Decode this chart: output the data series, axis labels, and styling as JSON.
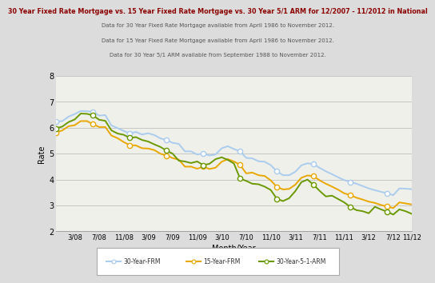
{
  "title": "30 Year Fixed Rate Mortgage vs. 15 Year Fixed Rate Mortgage vs. 30 Year 5/1 ARM for 12/2007 - 11/2012 in National",
  "subtitle1": "Data for 30 Year Fixed Rate Mortgage available from April 1986 to November 2012.",
  "subtitle2": "Data for 15 Year Fixed Rate Mortgage available from April 1986 to November 2012.",
  "subtitle3": "Data for 30 Year 5/1 ARM available from September 1988 to November 2012.",
  "xlabel": "Month/Year",
  "ylabel": "Rate",
  "ylim": [
    2,
    8
  ],
  "yticks": [
    2,
    3,
    4,
    5,
    6,
    7,
    8
  ],
  "bg_color": "#dcdcdc",
  "plot_bg_color": "#f0f0ea",
  "title_color": "#8b0000",
  "subtitle_color": "#555555",
  "color_30yr": "#aaccee",
  "color_15yr": "#e8a800",
  "color_arm": "#6a9900",
  "xtick_labels": [
    "3/08",
    "7/08",
    "11/08",
    "3/09",
    "7/09",
    "11/09",
    "3/10",
    "7/10",
    "11/10",
    "3/11",
    "7/11",
    "11/11",
    "3/12",
    "7/12",
    "11/12"
  ],
  "rate_30yr": [
    6.24,
    6.26,
    6.43,
    6.53,
    6.65,
    6.64,
    6.62,
    6.47,
    6.49,
    6.09,
    5.99,
    5.88,
    5.78,
    5.84,
    5.74,
    5.79,
    5.72,
    5.59,
    5.53,
    5.42,
    5.38,
    5.09,
    5.09,
    4.97,
    5.01,
    4.93,
    4.97,
    5.21,
    5.29,
    5.18,
    5.09,
    4.84,
    4.82,
    4.71,
    4.69,
    4.56,
    4.32,
    4.17,
    4.17,
    4.3,
    4.55,
    4.63,
    4.6,
    4.45,
    4.32,
    4.21,
    4.09,
    3.98,
    3.91,
    3.84,
    3.75,
    3.66,
    3.59,
    3.53,
    3.47,
    3.4,
    3.66,
    3.65,
    3.63
  ],
  "rate_15yr": [
    5.82,
    5.9,
    6.06,
    6.1,
    6.26,
    6.26,
    6.14,
    6.03,
    6.03,
    5.7,
    5.6,
    5.45,
    5.33,
    5.32,
    5.21,
    5.2,
    5.14,
    5.0,
    4.93,
    4.83,
    4.77,
    4.5,
    4.5,
    4.42,
    4.5,
    4.41,
    4.46,
    4.69,
    4.79,
    4.7,
    4.57,
    4.24,
    4.27,
    4.17,
    4.14,
    3.97,
    3.72,
    3.62,
    3.64,
    3.8,
    4.07,
    4.16,
    4.13,
    3.97,
    3.84,
    3.73,
    3.61,
    3.47,
    3.4,
    3.3,
    3.23,
    3.15,
    3.1,
    3.02,
    2.96,
    2.9,
    3.12,
    3.08,
    3.04
  ],
  "rate_arm": [
    5.98,
    6.05,
    6.22,
    6.32,
    6.55,
    6.54,
    6.48,
    6.31,
    6.27,
    5.9,
    5.78,
    5.73,
    5.61,
    5.64,
    5.53,
    5.47,
    5.36,
    5.26,
    5.12,
    5.0,
    4.73,
    4.7,
    4.64,
    4.7,
    4.56,
    4.61,
    4.79,
    4.86,
    4.76,
    4.62,
    4.04,
    3.95,
    3.84,
    3.82,
    3.73,
    3.6,
    3.26,
    3.17,
    3.28,
    3.55,
    3.9,
    4.0,
    3.8,
    3.56,
    3.35,
    3.38,
    3.25,
    3.12,
    2.94,
    2.82,
    2.78,
    2.7,
    2.95,
    2.85,
    2.76,
    2.65,
    2.85,
    2.78,
    2.68
  ],
  "marker_interval": 6,
  "line_width": 1.4,
  "marker_size": 4.5
}
